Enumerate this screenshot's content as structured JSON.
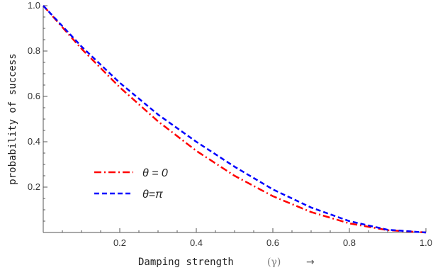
{
  "chart_data": {
    "type": "line",
    "xlabel": "Damping strength",
    "xlabel_symbol": "(γ)",
    "xlabel_arrow": "→",
    "ylabel": "probability of success",
    "xlim": [
      0,
      1.0
    ],
    "ylim": [
      0,
      1.0
    ],
    "x_ticks": [
      "0.2",
      "0.4",
      "0.6",
      "0.8",
      "1.0"
    ],
    "y_ticks": [
      "0.2",
      "0.4",
      "0.6",
      "0.8",
      "1.0"
    ],
    "grid": false,
    "legend_position": "lower-left",
    "series": [
      {
        "name": "θ = 0",
        "color": "#ff0000",
        "style": "dash-dot",
        "x": [
          0,
          0.1,
          0.2,
          0.3,
          0.4,
          0.5,
          0.6,
          0.7,
          0.8,
          0.9,
          1.0
        ],
        "y": [
          1.0,
          0.81,
          0.64,
          0.49,
          0.36,
          0.25,
          0.16,
          0.09,
          0.04,
          0.01,
          0.0
        ]
      },
      {
        "name": "θ=π",
        "color": "#0000ff",
        "style": "dashed",
        "x": [
          0,
          0.1,
          0.2,
          0.3,
          0.4,
          0.5,
          0.6,
          0.7,
          0.8,
          0.9,
          1.0
        ],
        "y": [
          1.0,
          0.82,
          0.66,
          0.52,
          0.4,
          0.29,
          0.19,
          0.11,
          0.05,
          0.012,
          0.0
        ]
      }
    ]
  }
}
